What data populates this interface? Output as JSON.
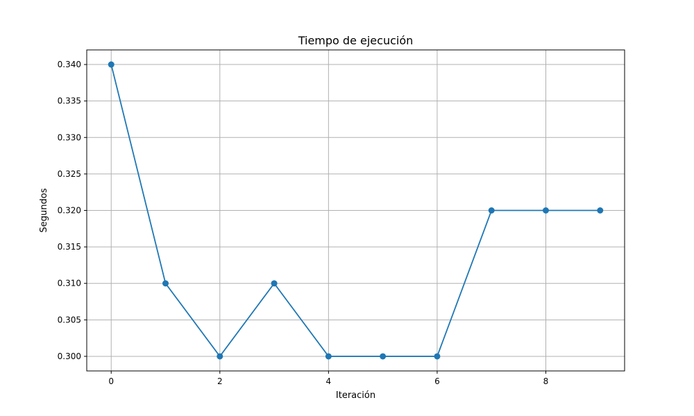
{
  "chart_data": {
    "type": "line",
    "title": "Tiempo de ejecución",
    "xlabel": "Iteración",
    "ylabel": "Segundos",
    "x": [
      0,
      1,
      2,
      3,
      4,
      5,
      6,
      7,
      8,
      9
    ],
    "series": [
      {
        "values": [
          0.34,
          0.31,
          0.3,
          0.31,
          0.3,
          0.3,
          0.3,
          0.32,
          0.32,
          0.32
        ]
      }
    ],
    "xlim": [
      -0.45,
      9.45
    ],
    "ylim": [
      0.298,
      0.342
    ],
    "xticks": [
      0,
      2,
      4,
      6,
      8
    ],
    "xtick_labels": [
      "0",
      "2",
      "4",
      "6",
      "8"
    ],
    "yticks": [
      0.3,
      0.305,
      0.31,
      0.315,
      0.32,
      0.325,
      0.33,
      0.335,
      0.34
    ],
    "ytick_labels": [
      "0.300",
      "0.305",
      "0.310",
      "0.315",
      "0.320",
      "0.325",
      "0.330",
      "0.335",
      "0.340"
    ],
    "grid": true,
    "marker": "circle",
    "line_color": "#1f77b4",
    "grid_color": "#b0b0b0"
  }
}
